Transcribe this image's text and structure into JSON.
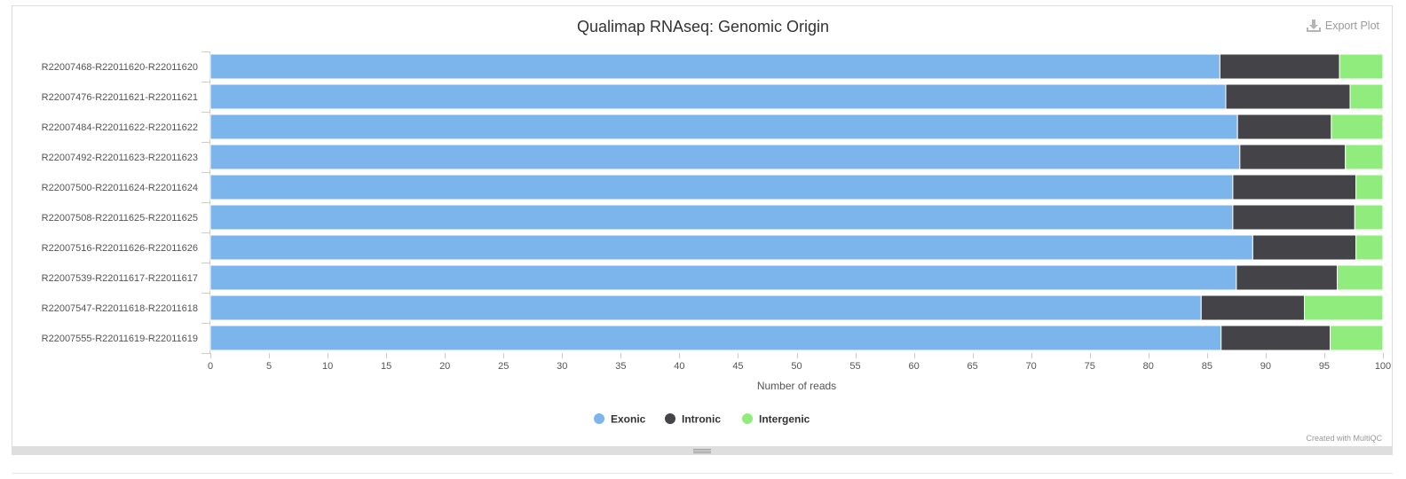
{
  "header": {
    "export_label": "Export Plot",
    "export_icon": "download-icon"
  },
  "footer": {
    "credit": "Created with MultiQC"
  },
  "colors": {
    "Exonic": "#7cb5ec",
    "Intronic": "#434348",
    "Intergenic": "#90ed7d"
  },
  "chart_data": {
    "type": "bar",
    "orientation": "horizontal",
    "stacking": "percent",
    "title": "Qualimap RNAseq: Genomic Origin",
    "xlabel": "Number of reads",
    "ylabel": "",
    "xlim": [
      0,
      100
    ],
    "xticks": [
      0,
      5,
      10,
      15,
      20,
      25,
      30,
      35,
      40,
      45,
      50,
      55,
      60,
      65,
      70,
      75,
      80,
      85,
      90,
      95,
      100
    ],
    "grid": false,
    "legend_position": "bottom-center",
    "categories": [
      "R22007468-R22011620-R22011620",
      "R22007476-R22011621-R22011621",
      "R22007484-R22011622-R22011622",
      "R22007492-R22011623-R22011623",
      "R22007500-R22011624-R22011624",
      "R22007508-R22011625-R22011625",
      "R22007516-R22011626-R22011626",
      "R22007539-R22011617-R22011617",
      "R22007547-R22011618-R22011618",
      "R22007555-R22011619-R22011619"
    ],
    "series": [
      {
        "name": "Exonic",
        "values": [
          86.1,
          86.6,
          87.6,
          87.8,
          87.2,
          87.2,
          88.9,
          87.5,
          84.5,
          86.2
        ]
      },
      {
        "name": "Intronic",
        "values": [
          10.2,
          10.6,
          8.0,
          9.0,
          10.5,
          10.4,
          8.8,
          8.6,
          8.8,
          9.3
        ]
      },
      {
        "name": "Intergenic",
        "values": [
          3.7,
          2.8,
          4.4,
          3.2,
          2.3,
          2.4,
          2.3,
          3.9,
          6.7,
          4.5
        ]
      }
    ]
  }
}
